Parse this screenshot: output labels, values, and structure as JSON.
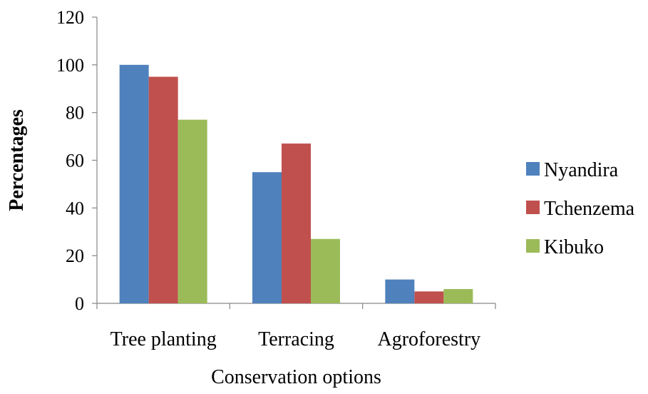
{
  "chart_data": {
    "type": "bar",
    "xlabel": "Conservation options",
    "ylabel": "Percentages",
    "categories": [
      "Tree planting",
      "Terracing",
      "Agroforestry"
    ],
    "ylim": [
      0,
      120
    ],
    "yticks": [
      "0",
      "20",
      "40",
      "60",
      "80",
      "100",
      "120"
    ],
    "grid": false,
    "legend_position": "right",
    "series": [
      {
        "name": "Nyandira",
        "color": "#4f81bd",
        "values": [
          100,
          55,
          10
        ]
      },
      {
        "name": "Tchenzema",
        "color": "#c0504d",
        "values": [
          95,
          67,
          5
        ]
      },
      {
        "name": "Kibuko",
        "color": "#9bbb59",
        "values": [
          77,
          27,
          6
        ]
      }
    ]
  }
}
